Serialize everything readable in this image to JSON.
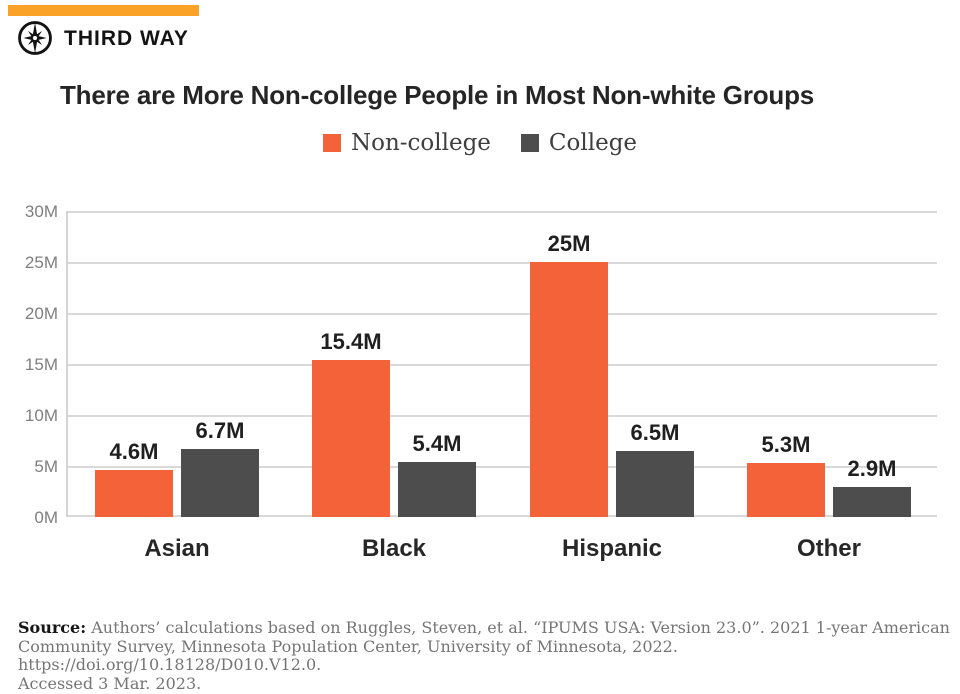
{
  "brand": {
    "logo_text": "THIRD WAY",
    "top_bar_color": "#F9A227",
    "logo_color": "#131313"
  },
  "title": "There are More Non-college People in Most Non-white Groups",
  "chart_data": {
    "type": "bar",
    "title": "There are More Non-college People in Most Non-white Groups",
    "categories": [
      "Asian",
      "Black",
      "Hispanic",
      "Other"
    ],
    "series": [
      {
        "name": "Non-college",
        "color": "#F4623A",
        "values": [
          4.6,
          15.4,
          25,
          5.3
        ],
        "value_labels": [
          "4.6M",
          "15.4M",
          "25M",
          "5.3M"
        ]
      },
      {
        "name": "College",
        "color": "#4D4D4D",
        "values": [
          6.7,
          5.4,
          6.5,
          2.9
        ],
        "value_labels": [
          "6.7M",
          "5.4M",
          "6.5M",
          "2.9M"
        ]
      }
    ],
    "xlabel": "",
    "ylabel": "",
    "ylim": [
      0,
      30
    ],
    "yticks": [
      {
        "value": 30,
        "label": "30M"
      },
      {
        "value": 25,
        "label": "25M"
      },
      {
        "value": 20,
        "label": "20M"
      },
      {
        "value": 15,
        "label": "15M"
      },
      {
        "value": 10,
        "label": "10M"
      },
      {
        "value": 5,
        "label": "5M"
      },
      {
        "value": 0,
        "label": "0M"
      }
    ],
    "grid": true,
    "legend_position": "top"
  },
  "source": {
    "label": "Source:",
    "lines": [
      "Authors’ calculations based on Ruggles, Steven, et al. “IPUMS USA: Version 23.0”. 2021 1-year American",
      "Community Survey, Minnesota Population Center, University of Minnesota, 2022. https://doi.org/10.18128/D010.V12.0.",
      "Accessed 3 Mar. 2023."
    ]
  }
}
